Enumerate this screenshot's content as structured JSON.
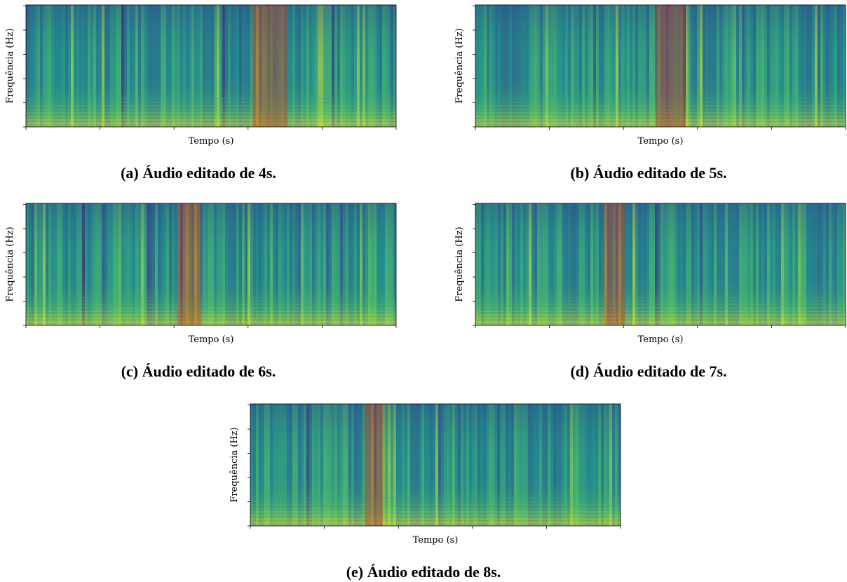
{
  "panels": [
    {
      "y_label": "Frequência (Hz)",
      "x_label": "Tempo (s)",
      "caption": "(a) Áudio editado de 4s."
    },
    {
      "y_label": "Frequência (Hz)",
      "x_label": "Tempo (s)",
      "caption": "(b) Áudio editado de 5s."
    },
    {
      "y_label": "Frequência (Hz)",
      "x_label": "Tempo (s)",
      "caption": "(c) Áudio editado de 6s."
    },
    {
      "y_label": "Frequência (Hz)",
      "x_label": "Tempo (s)",
      "caption": "(d) Áudio editado de 7s."
    },
    {
      "y_label": "Frequência (Hz)",
      "x_label": "Tempo (s)",
      "caption": "(e) Áudio editado de 8s."
    }
  ]
}
